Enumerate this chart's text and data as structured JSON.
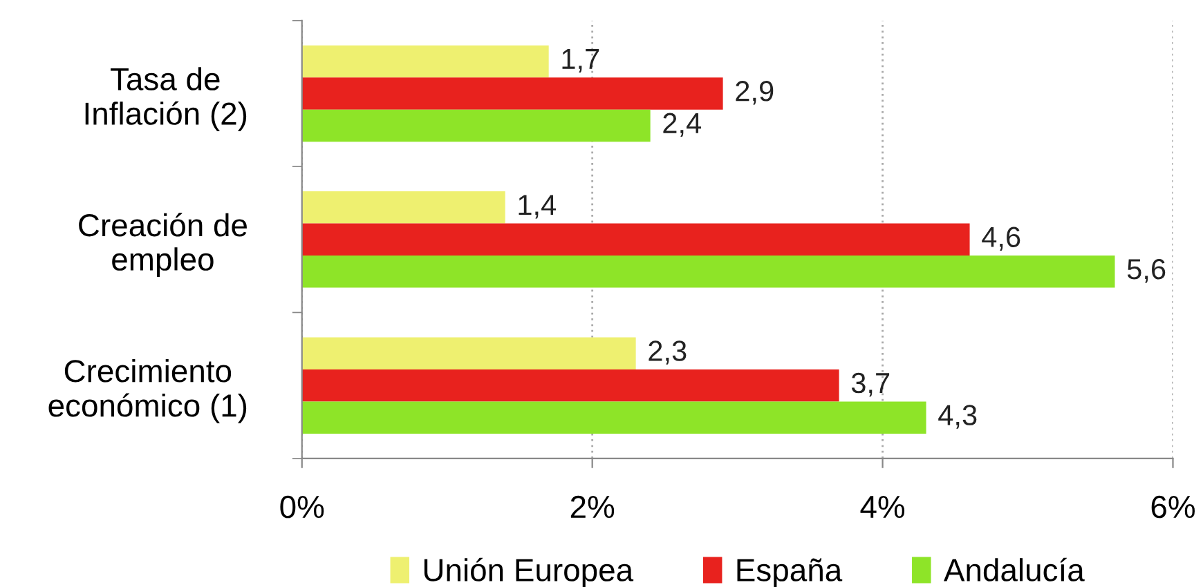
{
  "chart_data": {
    "type": "bar",
    "orientation": "horizontal",
    "categories": [
      "Tasa de\nInflación (2)",
      "Creación de\nempleo",
      "Crecimiento\neconómico (1)"
    ],
    "series": [
      {
        "name": "Unión Europea",
        "color": "#eef070",
        "values": [
          1.7,
          1.4,
          2.3
        ],
        "value_labels": [
          "1,7",
          "1,4",
          "2,3"
        ]
      },
      {
        "name": "España",
        "color": "#e8221e",
        "values": [
          2.9,
          4.6,
          3.7
        ],
        "value_labels": [
          "2,9",
          "4,6",
          "3,7"
        ]
      },
      {
        "name": "Andalucía",
        "color": "#8ee428",
        "values": [
          2.4,
          5.6,
          4.3
        ],
        "value_labels": [
          "2,4",
          "5,6",
          "4,3"
        ]
      }
    ],
    "xlim": [
      0,
      6
    ],
    "xticks": [
      {
        "value": 0,
        "label": "0%"
      },
      {
        "value": 2,
        "label": "2%"
      },
      {
        "value": 4,
        "label": "4%"
      },
      {
        "value": 6,
        "label": "6%"
      }
    ],
    "grid": "x",
    "legend": "bottom"
  }
}
